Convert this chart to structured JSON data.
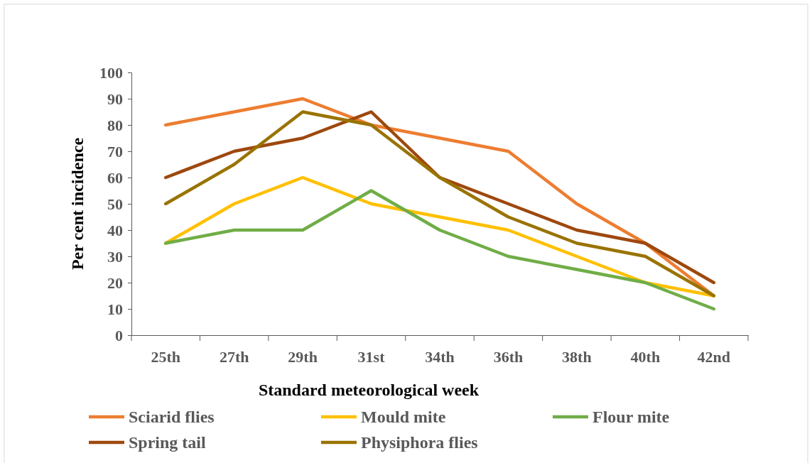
{
  "chart_data": {
    "type": "line",
    "xlabel": "Standard meteorological week",
    "ylabel": "Per cent incidence",
    "categories": [
      "25th",
      "27th",
      "29th",
      "31st",
      "34th",
      "36th",
      "38th",
      "40th",
      "42nd"
    ],
    "series": [
      {
        "name": "Sciarid flies",
        "color": "#ed7d31",
        "values": [
          80,
          85,
          90,
          80,
          75,
          70,
          50,
          35,
          15
        ]
      },
      {
        "name": "Mould mite",
        "color": "#ffc000",
        "values": [
          35,
          50,
          60,
          50,
          45,
          40,
          30,
          20,
          15
        ]
      },
      {
        "name": "Flour mite",
        "color": "#70ad47",
        "values": [
          35,
          40,
          40,
          55,
          40,
          30,
          25,
          20,
          10
        ]
      },
      {
        "name": "Spring tail",
        "color": "#9e480e",
        "values": [
          60,
          70,
          75,
          85,
          60,
          50,
          40,
          35,
          20
        ]
      },
      {
        "name": "Physiphora flies",
        "color": "#997300",
        "values": [
          50,
          65,
          85,
          80,
          60,
          45,
          35,
          30,
          15
        ]
      }
    ],
    "ylim": [
      0,
      100
    ],
    "yticks": [
      0,
      10,
      20,
      30,
      40,
      50,
      60,
      70,
      80,
      90,
      100
    ],
    "grid": false,
    "legend": "bottom",
    "marker": "none",
    "line_style": "solid"
  }
}
